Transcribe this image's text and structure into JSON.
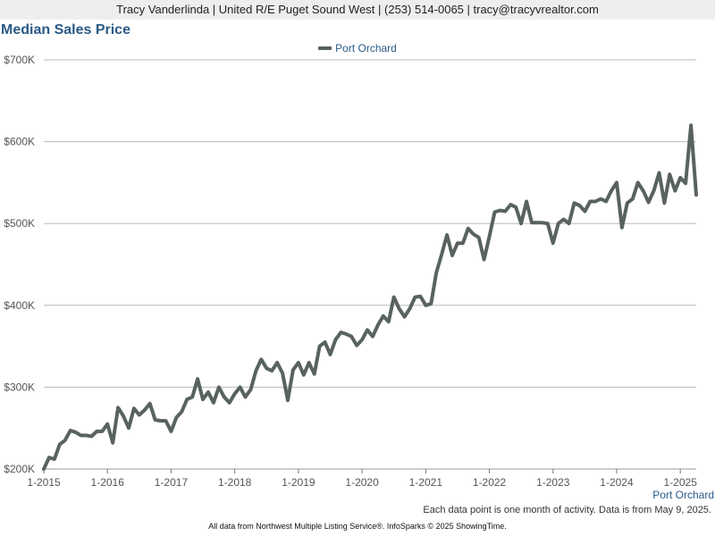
{
  "header": {
    "agent_line": "Tracy Vanderlinda | United R/E Puget Sound West | (253) 514-0065 | tracy@tracyvrealtor.com"
  },
  "chart_data": {
    "type": "line",
    "title": "Median Sales Price",
    "xlabel": "",
    "ylabel": "",
    "ylim": [
      200000,
      700000
    ],
    "xlim": [
      "2015-01",
      "2025-04"
    ],
    "y_ticks": [
      200000,
      300000,
      400000,
      500000,
      600000,
      700000
    ],
    "y_tick_labels": [
      "$200K",
      "$300K",
      "$400K",
      "$500K",
      "$600K",
      "$700K"
    ],
    "x_tick_labels": [
      "1-2015",
      "1-2016",
      "1-2017",
      "1-2018",
      "1-2019",
      "1-2020",
      "1-2021",
      "1-2022",
      "1-2023",
      "1-2024",
      "1-2025"
    ],
    "grid": true,
    "legend_position": "top-center",
    "series_color": "#586260",
    "series": [
      {
        "name": "Port Orchard",
        "start": "2015-01",
        "values": [
          200000,
          214000,
          212000,
          230000,
          235000,
          247000,
          245000,
          241000,
          241000,
          240000,
          246000,
          246000,
          255000,
          232000,
          275000,
          265000,
          250000,
          274000,
          266000,
          272000,
          280000,
          260000,
          259000,
          259000,
          246000,
          263000,
          270000,
          285000,
          288000,
          310000,
          285000,
          294000,
          281000,
          300000,
          288000,
          281000,
          292000,
          300000,
          288000,
          297000,
          320000,
          334000,
          323000,
          320000,
          330000,
          317000,
          284000,
          321000,
          330000,
          315000,
          330000,
          316000,
          350000,
          355000,
          340000,
          358000,
          367000,
          365000,
          362000,
          351000,
          358000,
          370000,
          362000,
          376000,
          387000,
          380000,
          410000,
          396000,
          386000,
          396000,
          410000,
          411000,
          400000,
          402000,
          440000,
          462000,
          486000,
          461000,
          476000,
          476000,
          494000,
          487000,
          483000,
          456000,
          484000,
          514000,
          516000,
          515000,
          523000,
          520000,
          500000,
          527000,
          501000,
          501000,
          501000,
          500000,
          476000,
          500000,
          505000,
          500000,
          525000,
          522000,
          515000,
          527000,
          527000,
          530000,
          527000,
          540000,
          550000,
          495000,
          525000,
          530000,
          550000,
          540000,
          526000,
          540000,
          562000,
          525000,
          560000,
          540000,
          556000,
          549000,
          620000,
          535000
        ]
      }
    ]
  },
  "footer": {
    "note": "Each data point is one month of activity. Data is from May 9, 2025.",
    "credit": "All data from Northwest Multiple Listing Service®. InfoSparks © 2025 ShowingTime."
  }
}
